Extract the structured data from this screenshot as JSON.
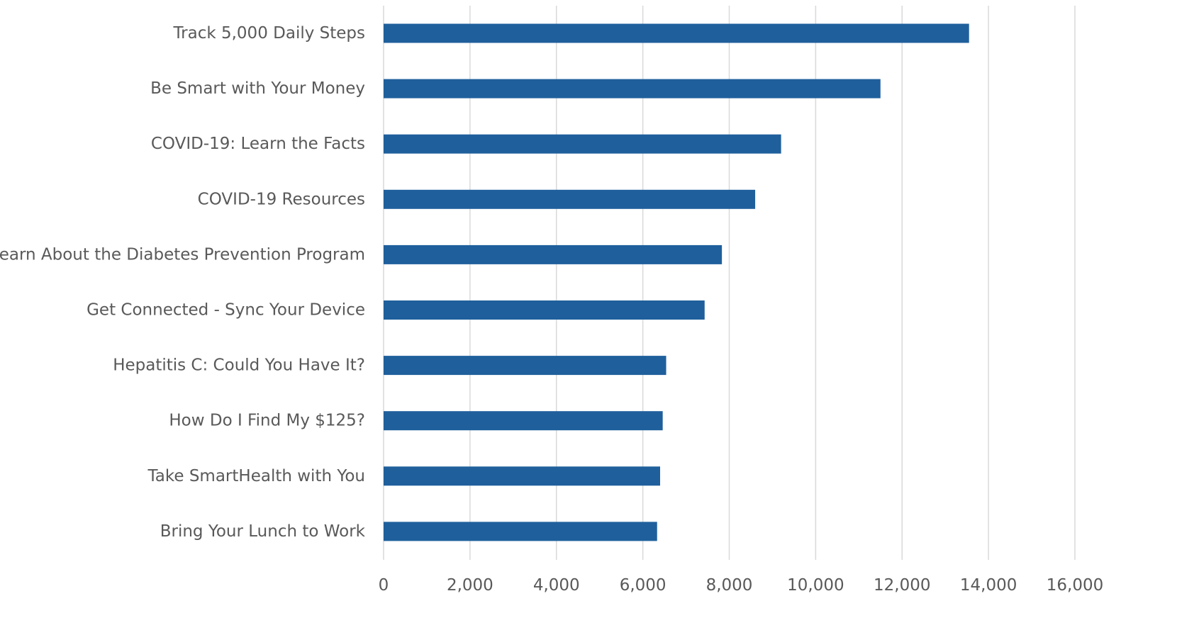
{
  "chart_data": {
    "type": "bar",
    "orientation": "horizontal",
    "categories": [
      "Track 5,000 Daily Steps",
      "Be Smart with Your Money",
      "COVID-19: Learn the Facts",
      "COVID-19 Resources",
      "Learn About the Diabetes Prevention Program",
      "Get Connected - Sync Your Device",
      "Hepatitis C: Could You Have It?",
      "How Do I Find My $125?",
      "Take SmartHealth with You",
      "Bring Your Lunch to Work"
    ],
    "values": [
      13550,
      11500,
      9200,
      8600,
      7830,
      7430,
      6540,
      6460,
      6400,
      6330
    ],
    "xlim": [
      0,
      16000
    ],
    "x_ticks": [
      "0",
      "2,000",
      "4,000",
      "6,000",
      "8,000",
      "10,000",
      "12,000",
      "14,000",
      "16,000"
    ],
    "grid": true,
    "legend": "none",
    "title": "",
    "xlabel": "",
    "ylabel": ""
  },
  "colors": {
    "bar": "#1f5f9c",
    "grid": "#d9d9d9",
    "text": "#595959"
  }
}
